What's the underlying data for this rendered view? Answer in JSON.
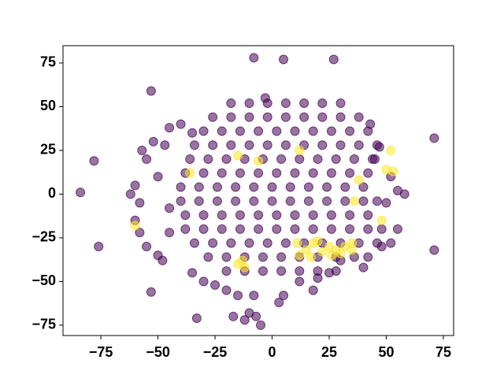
{
  "chart_data": {
    "type": "scatter",
    "xlim": [
      -91.6,
      79.5
    ],
    "ylim": [
      -80.9,
      84.9
    ],
    "xticks": [
      {
        "value": -75,
        "label": "−75"
      },
      {
        "value": -50,
        "label": "−50"
      },
      {
        "value": -25,
        "label": "−25"
      },
      0,
      25,
      50,
      75
    ],
    "yticks": [
      {
        "value": -75,
        "label": "−75"
      },
      {
        "value": -50,
        "label": "−50"
      },
      {
        "value": -25,
        "label": "−25"
      },
      0,
      25,
      50,
      75
    ],
    "grid": false,
    "series": [
      {
        "color": "#440154",
        "x": [
          -18,
          -10,
          -2,
          6,
          14,
          22,
          30,
          -26,
          -18,
          -10,
          -2,
          6,
          14,
          22,
          30,
          38,
          -30,
          -22,
          -14,
          -6,
          2,
          10,
          18,
          26,
          34,
          42,
          -34,
          -26,
          -18,
          -10,
          -2,
          6,
          14,
          22,
          30,
          38,
          46,
          -36,
          -28,
          -20,
          -12,
          -4,
          4,
          12,
          20,
          28,
          36,
          44,
          -38,
          -30,
          -22,
          -14,
          -6,
          2,
          10,
          18,
          26,
          34,
          42,
          -40,
          -32,
          -24,
          -16,
          -8,
          0,
          8,
          16,
          24,
          32,
          40,
          -40,
          -32,
          -24,
          -16,
          -8,
          0,
          8,
          16,
          24,
          32,
          40,
          46,
          -38,
          -30,
          -22,
          -14,
          -6,
          2,
          10,
          18,
          26,
          34,
          42,
          -38,
          -30,
          -22,
          -14,
          -6,
          2,
          10,
          18,
          26,
          34,
          42,
          48,
          -34,
          -26,
          -18,
          -10,
          -2,
          6,
          14,
          22,
          30,
          38,
          46,
          -28,
          -20,
          -12,
          -4,
          4,
          12,
          20,
          28,
          36,
          42,
          -20,
          -12,
          -4,
          4,
          12,
          20,
          28,
          -57,
          -55,
          -52,
          -47,
          -60,
          -62,
          -58,
          -60,
          -58,
          -55,
          -50,
          -48,
          -45,
          -45,
          -50,
          -35,
          -30,
          -25,
          -15,
          -12,
          -10,
          -7,
          3,
          5,
          12,
          20,
          25,
          30,
          40,
          48,
          52,
          55,
          50,
          55,
          58,
          52,
          45,
          47,
          43,
          -40,
          -45,
          -35,
          -8,
          -20,
          18,
          -84,
          -78,
          -76,
          -53,
          -53,
          -33,
          -8,
          5,
          27,
          71,
          71,
          -3,
          -17,
          -5
        ],
        "values": [
          52,
          52,
          52,
          52,
          52,
          52,
          52,
          44,
          44,
          44,
          44,
          44,
          44,
          44,
          44,
          44,
          36,
          36,
          36,
          36,
          36,
          36,
          36,
          36,
          36,
          36,
          28,
          28,
          28,
          28,
          28,
          28,
          28,
          28,
          28,
          28,
          28,
          20,
          20,
          20,
          20,
          20,
          20,
          20,
          20,
          20,
          20,
          20,
          12,
          12,
          12,
          12,
          12,
          12,
          12,
          12,
          12,
          12,
          12,
          4,
          4,
          4,
          4,
          4,
          4,
          4,
          4,
          4,
          4,
          4,
          -4,
          -4,
          -4,
          -4,
          -4,
          -4,
          -4,
          -4,
          -4,
          -4,
          -4,
          -4,
          -12,
          -12,
          -12,
          -12,
          -12,
          -12,
          -12,
          -12,
          -12,
          -12,
          -12,
          -20,
          -20,
          -20,
          -20,
          -20,
          -20,
          -20,
          -20,
          -20,
          -20,
          -20,
          -20,
          -28,
          -28,
          -28,
          -28,
          -28,
          -28,
          -28,
          -28,
          -28,
          -28,
          -28,
          -36,
          -36,
          -36,
          -36,
          -36,
          -36,
          -36,
          -36,
          -36,
          -36,
          -44,
          -44,
          -44,
          -44,
          -44,
          -44,
          -44,
          25,
          20,
          30,
          28,
          5,
          0,
          -5,
          -15,
          -22,
          -30,
          -35,
          -38,
          -22,
          -8,
          10,
          -45,
          -50,
          -52,
          -58,
          -72,
          -68,
          -70,
          -62,
          -58,
          -50,
          -48,
          -45,
          -38,
          -42,
          -30,
          -28,
          -20,
          -5,
          2,
          0,
          10,
          20,
          27,
          40,
          40,
          38,
          35,
          -58,
          -55,
          -55,
          1,
          19,
          -30,
          59,
          -56,
          -71,
          78,
          77,
          77,
          32,
          -32,
          55,
          -70,
          -75
        ]
      },
      {
        "color": "#fde725",
        "x": [
          28,
          25,
          30,
          22,
          18,
          15,
          20,
          12,
          32,
          35,
          26,
          17,
          52,
          50,
          53,
          48,
          38,
          36,
          -15,
          -12,
          -6,
          -15,
          12,
          -60,
          -36,
          11,
          35,
          -13
        ],
        "values": [
          -32,
          -30,
          -34,
          -33,
          -28,
          -32,
          -27,
          -35,
          -30,
          -32,
          -35,
          -36,
          25,
          14,
          13,
          -15,
          8,
          -4,
          -40,
          -42,
          19,
          22,
          25,
          -18,
          12,
          -28,
          -28,
          -38
        ]
      }
    ]
  }
}
